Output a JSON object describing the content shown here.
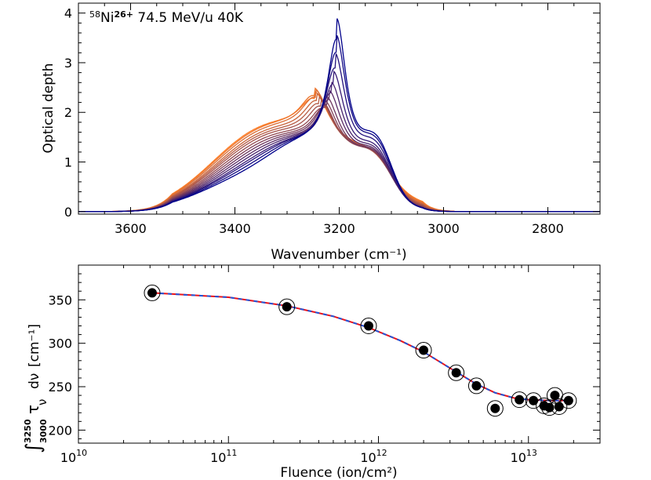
{
  "figure": {
    "panel_top": {
      "annotation": {
        "prefix_sup": "58",
        "element": "Ni",
        "charge_sup": "26+",
        "rest": " 74.5 MeV/u 40K"
      }
    }
  },
  "chart_data": [
    {
      "type": "line",
      "xlabel": "Wavenumber (cm⁻¹)",
      "ylabel": "Optical depth",
      "xlim": [
        3700,
        2700
      ],
      "ylim": [
        -0.05,
        4.2
      ],
      "x_ticks": [
        3600,
        3400,
        3200,
        3000,
        2800
      ],
      "y_ticks": [
        0,
        1,
        2,
        3,
        4
      ],
      "grid": false,
      "color_gradient": [
        "#00008b",
        "#ff7f27"
      ],
      "series_peak_heights": [
        3.9,
        3.55,
        3.15,
        2.75,
        2.5,
        2.3,
        2.15,
        2.05,
        2.0,
        2.02,
        2.05,
        2.1,
        2.15,
        2.17,
        2.1
      ],
      "series_shoulder_3380": [
        0.62,
        0.65,
        0.68,
        0.7,
        0.73,
        0.76,
        0.79,
        0.82,
        0.85,
        0.88,
        0.9,
        0.92,
        0.95,
        0.97,
        0.98
      ],
      "series_peak_positions": [
        3205,
        3206,
        3208,
        3211,
        3215,
        3219,
        3224,
        3228,
        3232,
        3236,
        3240,
        3243,
        3246,
        3248,
        3248
      ],
      "series_shoulder_3120": [
        1.75,
        1.68,
        1.6,
        1.52,
        1.46,
        1.41,
        1.37,
        1.33,
        1.3,
        1.27,
        1.24,
        1.21,
        1.19,
        1.17,
        1.15
      ]
    },
    {
      "type": "scatter",
      "xlabel": "Fluence (ion/cm²)",
      "ylabel_parts": {
        "integral": "∫",
        "upper": "3250",
        "lower": "3000",
        "tau": "τ",
        "nu_sub": "ν",
        "dnu": "dν",
        "unit": "[cm⁻¹]"
      },
      "x_scale": "log",
      "xlim": [
        10000000000.0,
        30000000000000.0
      ],
      "ylim": [
        185,
        390
      ],
      "x_ticks": [
        10000000000.0,
        100000000000.0,
        1000000000000.0,
        10000000000000.0
      ],
      "x_tick_labels": [
        {
          "base": "10",
          "exp": "10"
        },
        {
          "base": "10",
          "exp": "11"
        },
        {
          "base": "10",
          "exp": "12"
        },
        {
          "base": "10",
          "exp": "13"
        }
      ],
      "y_ticks": [
        200,
        250,
        300,
        350
      ],
      "points": [
        {
          "x": 31000000000.0,
          "y": 358
        },
        {
          "x": 245000000000.0,
          "y": 342
        },
        {
          "x": 860000000000.0,
          "y": 320
        },
        {
          "x": 2000000000000.0,
          "y": 292
        },
        {
          "x": 3300000000000.0,
          "y": 266
        },
        {
          "x": 4500000000000.0,
          "y": 251
        },
        {
          "x": 6000000000000.0,
          "y": 225
        },
        {
          "x": 8700000000000.0,
          "y": 235
        },
        {
          "x": 10800000000000.0,
          "y": 234
        },
        {
          "x": 12700000000000.0,
          "y": 228
        },
        {
          "x": 13800000000000.0,
          "y": 226
        },
        {
          "x": 15000000000000.0,
          "y": 240
        },
        {
          "x": 16000000000000.0,
          "y": 227
        },
        {
          "x": 18500000000000.0,
          "y": 234
        }
      ],
      "fit_curve": [
        {
          "x": 31000000000.0,
          "y": 358
        },
        {
          "x": 100000000000.0,
          "y": 353
        },
        {
          "x": 245000000000.0,
          "y": 343
        },
        {
          "x": 500000000000.0,
          "y": 331
        },
        {
          "x": 860000000000.0,
          "y": 318
        },
        {
          "x": 1400000000000.0,
          "y": 303
        },
        {
          "x": 2000000000000.0,
          "y": 290
        },
        {
          "x": 3300000000000.0,
          "y": 267
        },
        {
          "x": 4500000000000.0,
          "y": 253
        },
        {
          "x": 6000000000000.0,
          "y": 243
        },
        {
          "x": 8000000000000.0,
          "y": 237
        },
        {
          "x": 10000000000000.0,
          "y": 235
        },
        {
          "x": 14000000000000.0,
          "y": 234
        },
        {
          "x": 18500000000000.0,
          "y": 234
        }
      ],
      "fit_colors": {
        "solid": "#e8141c",
        "dashed": "#2255d8"
      }
    }
  ]
}
